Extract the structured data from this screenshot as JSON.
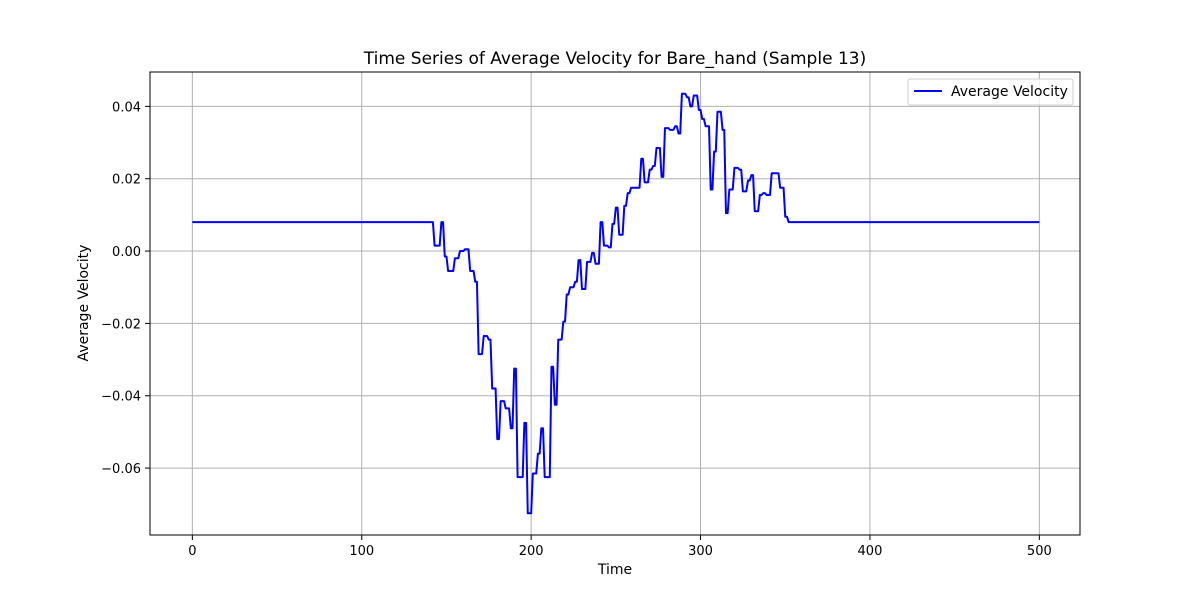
{
  "chart_data": {
    "type": "line",
    "title": "Time Series of Average Velocity for Bare_hand (Sample 13)",
    "xlabel": "Time",
    "ylabel": "Average Velocity",
    "xlim": [
      -25,
      524
    ],
    "ylim": [
      -0.0785,
      0.0495
    ],
    "xticks": [
      0,
      100,
      200,
      300,
      400,
      500
    ],
    "yticks": [
      -0.06,
      -0.04,
      -0.02,
      0.0,
      0.02,
      0.04
    ],
    "xtick_labels": [
      "0",
      "100",
      "200",
      "300",
      "400",
      "500"
    ],
    "ytick_labels": [
      "−0.06",
      "−0.04",
      "−0.02",
      "0.00",
      "0.02",
      "0.04"
    ],
    "grid": true,
    "legend_position": "top-right",
    "series": [
      {
        "name": "Average Velocity",
        "color": "#0000ff",
        "points": [
          [
            0,
            0.008
          ],
          [
            142,
            0.008
          ],
          [
            143,
            0.0015
          ],
          [
            146,
            0.0015
          ],
          [
            147,
            0.008
          ],
          [
            148,
            0.008
          ],
          [
            149,
            -0.0015
          ],
          [
            150,
            -0.0015
          ],
          [
            151,
            -0.0055
          ],
          [
            154,
            -0.0055
          ],
          [
            155,
            -0.002
          ],
          [
            157,
            -0.002
          ],
          [
            158,
            0.0
          ],
          [
            160,
            0.0
          ],
          [
            161,
            0.0005
          ],
          [
            163,
            0.0005
          ],
          [
            164,
            -0.0055
          ],
          [
            166,
            -0.0055
          ],
          [
            167,
            -0.0085
          ],
          [
            168,
            -0.0085
          ],
          [
            169,
            -0.0285
          ],
          [
            171,
            -0.0285
          ],
          [
            172,
            -0.0235
          ],
          [
            174,
            -0.0235
          ],
          [
            175,
            -0.0245
          ],
          [
            176,
            -0.0245
          ],
          [
            177,
            -0.038
          ],
          [
            179,
            -0.038
          ],
          [
            180,
            -0.052
          ],
          [
            181,
            -0.052
          ],
          [
            182,
            -0.0415
          ],
          [
            184,
            -0.0415
          ],
          [
            185,
            -0.0435
          ],
          [
            187,
            -0.0435
          ],
          [
            188,
            -0.049
          ],
          [
            189,
            -0.049
          ],
          [
            190,
            -0.0325
          ],
          [
            191,
            -0.0325
          ],
          [
            192,
            -0.0625
          ],
          [
            195,
            -0.0625
          ],
          [
            196,
            -0.0475
          ],
          [
            197,
            -0.0475
          ],
          [
            198,
            -0.0725
          ],
          [
            200,
            -0.0725
          ],
          [
            201,
            -0.0615
          ],
          [
            203,
            -0.0615
          ],
          [
            204,
            -0.056
          ],
          [
            205,
            -0.056
          ],
          [
            206,
            -0.049
          ],
          [
            207,
            -0.049
          ],
          [
            208,
            -0.0625
          ],
          [
            211,
            -0.0625
          ],
          [
            212,
            -0.032
          ],
          [
            213,
            -0.032
          ],
          [
            214,
            -0.0425
          ],
          [
            215,
            -0.0425
          ],
          [
            216,
            -0.0245
          ],
          [
            218,
            -0.0245
          ],
          [
            219,
            -0.0195
          ],
          [
            220,
            -0.0195
          ],
          [
            221,
            -0.012
          ],
          [
            222,
            -0.012
          ],
          [
            223,
            -0.01
          ],
          [
            225,
            -0.01
          ],
          [
            226,
            -0.0085
          ],
          [
            227,
            -0.0085
          ],
          [
            228,
            -0.0025
          ],
          [
            229,
            -0.0025
          ],
          [
            230,
            -0.0105
          ],
          [
            232,
            -0.0105
          ],
          [
            233,
            -0.003
          ],
          [
            235,
            -0.003
          ],
          [
            236,
            -0.0005
          ],
          [
            237,
            -0.0005
          ],
          [
            238,
            -0.0035
          ],
          [
            240,
            -0.0035
          ],
          [
            241,
            0.008
          ],
          [
            242,
            0.008
          ],
          [
            243,
            0.0015
          ],
          [
            245,
            0.0015
          ],
          [
            246,
            0.001
          ],
          [
            247,
            0.001
          ],
          [
            248,
            0.0075
          ],
          [
            249,
            0.0075
          ],
          [
            250,
            0.012
          ],
          [
            251,
            0.012
          ],
          [
            252,
            0.0045
          ],
          [
            254,
            0.0045
          ],
          [
            255,
            0.0125
          ],
          [
            256,
            0.0125
          ],
          [
            257,
            0.016
          ],
          [
            258,
            0.016
          ],
          [
            259,
            0.0175
          ],
          [
            264,
            0.0175
          ],
          [
            265,
            0.0255
          ],
          [
            266,
            0.0255
          ],
          [
            267,
            0.019
          ],
          [
            269,
            0.019
          ],
          [
            270,
            0.0225
          ],
          [
            271,
            0.0225
          ],
          [
            272,
            0.0235
          ],
          [
            273,
            0.0235
          ],
          [
            274,
            0.0285
          ],
          [
            276,
            0.0285
          ],
          [
            277,
            0.0205
          ],
          [
            278,
            0.0205
          ],
          [
            279,
            0.034
          ],
          [
            281,
            0.034
          ],
          [
            282,
            0.0335
          ],
          [
            284,
            0.0335
          ],
          [
            285,
            0.0345
          ],
          [
            286,
            0.0345
          ],
          [
            287,
            0.0325
          ],
          [
            288,
            0.0325
          ],
          [
            289,
            0.0435
          ],
          [
            291,
            0.0435
          ],
          [
            292,
            0.0425
          ],
          [
            293,
            0.0425
          ],
          [
            294,
            0.04
          ],
          [
            295,
            0.04
          ],
          [
            296,
            0.043
          ],
          [
            298,
            0.043
          ],
          [
            299,
            0.039
          ],
          [
            300,
            0.039
          ],
          [
            301,
            0.0365
          ],
          [
            302,
            0.0365
          ],
          [
            303,
            0.0345
          ],
          [
            305,
            0.0345
          ],
          [
            306,
            0.017
          ],
          [
            307,
            0.017
          ],
          [
            308,
            0.0275
          ],
          [
            309,
            0.0275
          ],
          [
            310,
            0.0385
          ],
          [
            312,
            0.0385
          ],
          [
            313,
            0.0335
          ],
          [
            314,
            0.0335
          ],
          [
            315,
            0.0105
          ],
          [
            316,
            0.0105
          ],
          [
            317,
            0.017
          ],
          [
            319,
            0.017
          ],
          [
            320,
            0.023
          ],
          [
            322,
            0.023
          ],
          [
            323,
            0.0225
          ],
          [
            324,
            0.0225
          ],
          [
            325,
            0.0165
          ],
          [
            327,
            0.0165
          ],
          [
            328,
            0.0195
          ],
          [
            329,
            0.0195
          ],
          [
            330,
            0.021
          ],
          [
            331,
            0.021
          ],
          [
            332,
            0.011
          ],
          [
            334,
            0.011
          ],
          [
            335,
            0.0155
          ],
          [
            336,
            0.0155
          ],
          [
            337,
            0.016
          ],
          [
            338,
            0.016
          ],
          [
            339,
            0.0155
          ],
          [
            341,
            0.0155
          ],
          [
            342,
            0.0215
          ],
          [
            346,
            0.0215
          ],
          [
            347,
            0.0175
          ],
          [
            349,
            0.0175
          ],
          [
            350,
            0.0095
          ],
          [
            351,
            0.0095
          ],
          [
            352,
            0.008
          ],
          [
            500,
            0.008
          ]
        ]
      }
    ]
  }
}
